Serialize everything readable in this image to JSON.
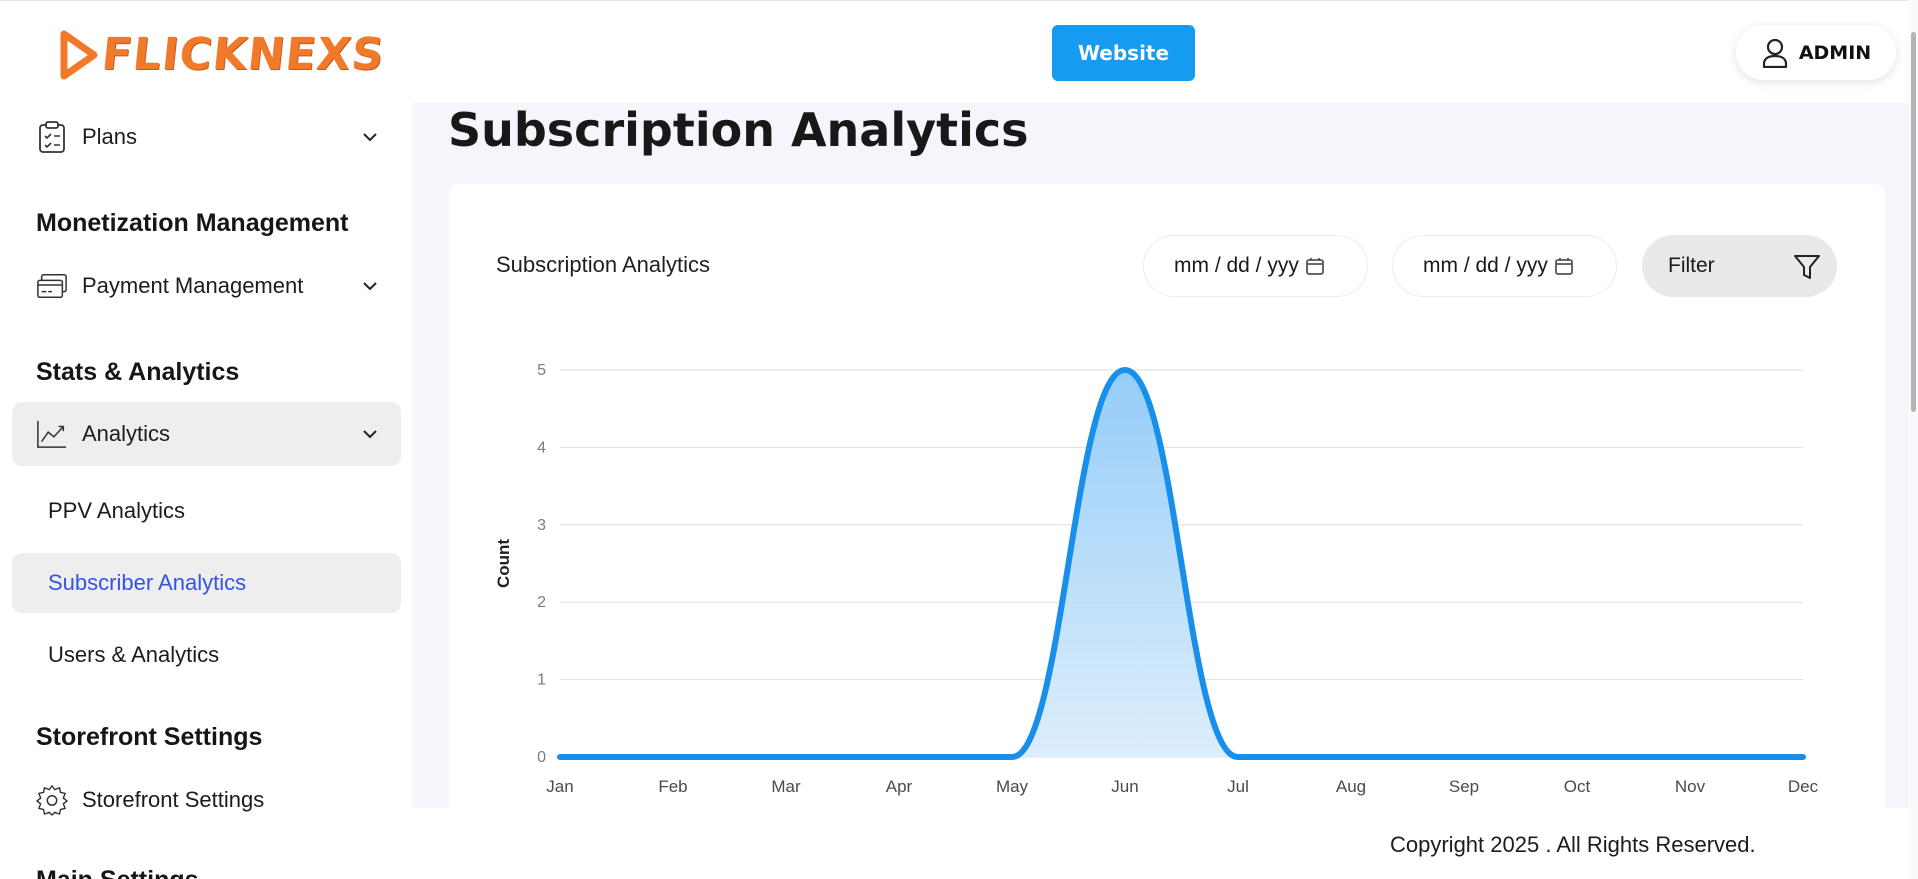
{
  "header": {
    "logo_text": "FLICKNEXS",
    "website_label": "Website",
    "admin_label": "ADMIN"
  },
  "sidebar": {
    "plans_label": "Plans",
    "monetization_title": "Monetization Management",
    "payment_label": "Payment Management",
    "stats_title": "Stats & Analytics",
    "analytics_label": "Analytics",
    "ppv_label": "PPV Analytics",
    "subscriber_label": "Subscriber Analytics",
    "users_label": "Users & Analytics",
    "storefront_title": "Storefront Settings",
    "storefront_label": "Storefront Settings",
    "main_settings_title": "Main Settings"
  },
  "main": {
    "page_title": "Subscription Analytics",
    "card_title": "Subscription Analytics",
    "start_date_placeholder": "mm / dd / yyy",
    "end_date_placeholder": "mm / dd / yyy",
    "filter_label": "Filter"
  },
  "chart_data": {
    "type": "area",
    "categories": [
      "Jan",
      "Feb",
      "Mar",
      "Apr",
      "May",
      "Jun",
      "Jul",
      "Aug",
      "Sep",
      "Oct",
      "Nov",
      "Dec"
    ],
    "values": [
      0,
      0,
      0,
      0,
      0,
      5,
      0,
      0,
      0,
      0,
      0,
      0
    ],
    "ylabel": "Count",
    "xlabel": "",
    "ylim": [
      0,
      5
    ],
    "yticks": [
      0,
      1,
      2,
      3,
      4,
      5
    ],
    "grid": true,
    "color": "#1a8fea"
  },
  "footer": {
    "copyright": "Copyright 2025  . All Rights Reserved."
  }
}
